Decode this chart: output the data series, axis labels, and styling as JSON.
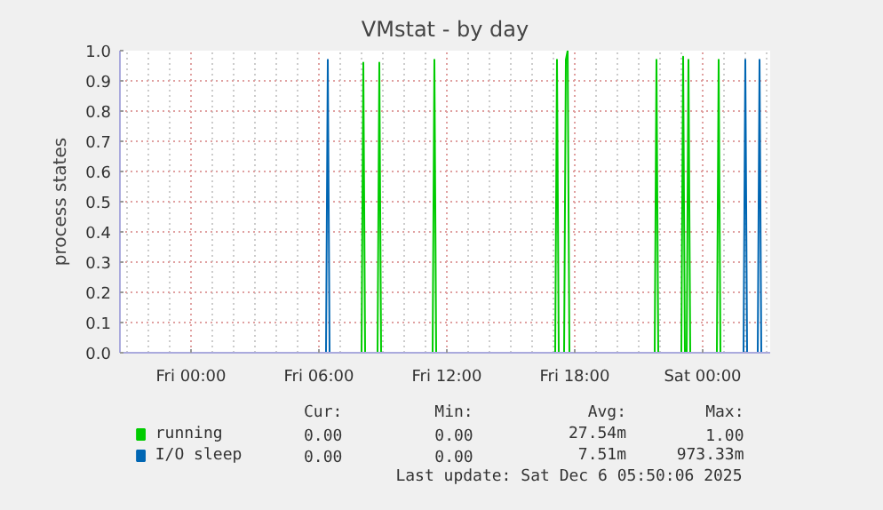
{
  "chart_data": {
    "type": "line",
    "title": "VMstat - by day",
    "ylabel": "process states",
    "xlim": [
      "2025-12-04T20:40",
      "2025-12-06T03:10"
    ],
    "ylim": [
      0,
      1.0
    ],
    "xticks": [
      {
        "value": "2025-12-05T00:00",
        "label": "Fri 00:00"
      },
      {
        "value": "2025-12-05T06:00",
        "label": "Fri 06:00"
      },
      {
        "value": "2025-12-05T12:00",
        "label": "Fri 12:00"
      },
      {
        "value": "2025-12-05T18:00",
        "label": "Fri 18:00"
      },
      {
        "value": "2025-12-06T00:00",
        "label": "Sat 00:00"
      }
    ],
    "yticks": [
      {
        "value": 0,
        "label": "0.0"
      },
      0.1,
      0.2,
      0.3,
      0.4,
      0.5,
      0.6,
      0.7,
      0.8,
      0.9,
      {
        "value": 1.0,
        "label": "1.0"
      }
    ],
    "grid": true,
    "legend": "bottom left",
    "series": [
      {
        "name": "running",
        "color": "#00cc00",
        "x": [
          "2025-12-05T08:00",
          "2025-12-05T08:05",
          "2025-12-05T08:10",
          "2025-12-05T08:45",
          "2025-12-05T08:50",
          "2025-12-05T08:55",
          "2025-12-05T11:20",
          "2025-12-05T11:25",
          "2025-12-05T11:30",
          "2025-12-05T17:05",
          "2025-12-05T17:10",
          "2025-12-05T17:15",
          "2025-12-05T17:30",
          "2025-12-05T17:35",
          "2025-12-05T17:40",
          "2025-12-05T17:45",
          "2025-12-05T21:45",
          "2025-12-05T21:50",
          "2025-12-05T21:55",
          "2025-12-05T23:00",
          "2025-12-05T23:05",
          "2025-12-05T23:10",
          "2025-12-05T23:15",
          "2025-12-05T23:20",
          "2025-12-05T23:25",
          "2025-12-06T00:40",
          "2025-12-06T00:45",
          "2025-12-06T00:50"
        ],
        "values": [
          0,
          0.96,
          0,
          0,
          0.96,
          0,
          0,
          0.97,
          0,
          0,
          0.97,
          0,
          0,
          0.97,
          1.0,
          0,
          0,
          0.97,
          0,
          0,
          0.98,
          0,
          0,
          0.97,
          0,
          0,
          0.97,
          0
        ]
      },
      {
        "name": "I/O sleep",
        "color": "#0066b3",
        "x": [
          "2025-12-05T06:20",
          "2025-12-05T06:25",
          "2025-12-05T06:30",
          "2025-12-06T01:55",
          "2025-12-06T02:00",
          "2025-12-06T02:05",
          "2025-12-06T02:35",
          "2025-12-06T02:40",
          "2025-12-06T02:45"
        ],
        "values": [
          0,
          0.97,
          0,
          0,
          0.97,
          0,
          0,
          0.97,
          0
        ]
      }
    ],
    "annotations": [
      "Cur:",
      "Min:",
      "Avg:",
      "Max:",
      "0.00",
      "0.00",
      "27.54m",
      "1.00",
      "0.00",
      "0.00",
      "7.51m",
      "973.33m",
      "Last update: Sat Dec  6 05:50:06 2025"
    ]
  }
}
